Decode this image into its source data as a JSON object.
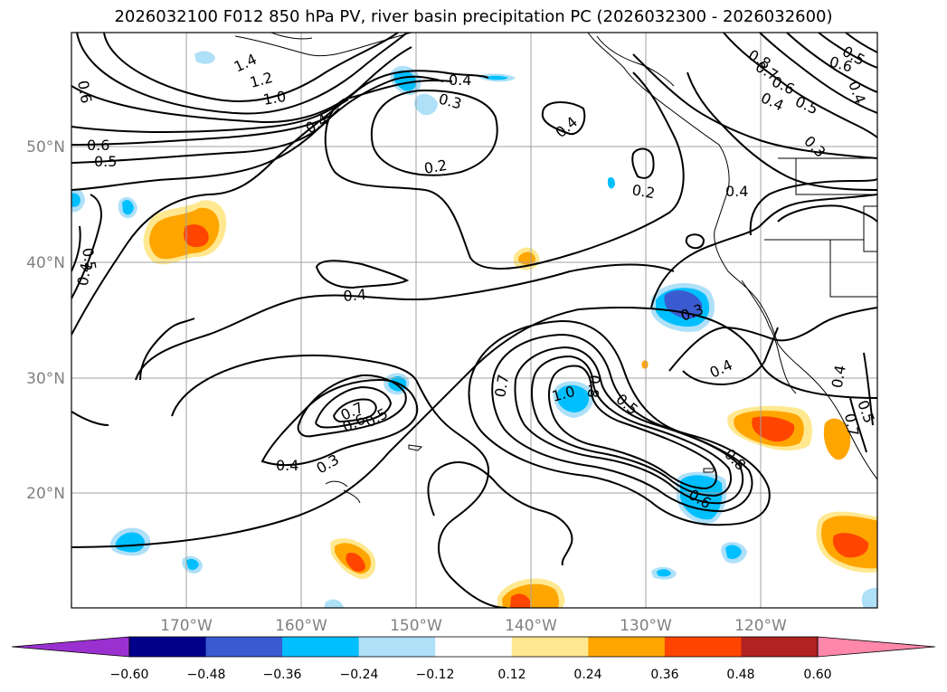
{
  "title": "2026032100 F012 850 hPa PV, river basin precipitation PC (2026032300 - 2026032600)",
  "axes": {
    "lat_labels": [
      "50°N",
      "40°N",
      "30°N",
      "20°N"
    ],
    "lon_labels": [
      "170°W",
      "160°W",
      "150°W",
      "140°W",
      "130°W",
      "120°W"
    ]
  },
  "contour_labels": [
    "0.6",
    "1.4",
    "1.2",
    "1.0",
    "0.4",
    "0.3",
    "0.6",
    "0.5",
    "0.4",
    "0.2",
    "0.4",
    "0.2",
    "0.8",
    "0.7",
    "0.6",
    "0.5",
    "0.4",
    "0.3",
    "0.6",
    "0.5",
    "0.4",
    "0.5",
    "0.4",
    "0.3",
    "0.4",
    "0.7",
    "0.6",
    "0.5",
    "0.4",
    "0.3",
    "0.7",
    "1.0",
    "0.8",
    "0.5",
    "0.8",
    "0.6",
    "0.4",
    "0.4",
    "0.4",
    "0.5",
    "0.7"
  ],
  "colorbar": {
    "ticks": [
      "−0.60",
      "−0.48",
      "−0.36",
      "−0.24",
      "−0.12",
      "0.12",
      "0.24",
      "0.36",
      "0.48",
      "0.60"
    ],
    "colors": [
      "#9b30d0",
      "#00008b",
      "#3a5bd0",
      "#00bfff",
      "#aee0f8",
      "#ffffff",
      "#ffe890",
      "#ffa500",
      "#ff4500",
      "#b22222",
      "#ff88aa"
    ]
  },
  "fill_colors": {
    "light_blue": "#aee0f8",
    "blue": "#00bfff",
    "mid_blue": "#3a5bd0",
    "light_orange": "#ffe890",
    "orange": "#ffa500",
    "red_orange": "#ff4500"
  }
}
